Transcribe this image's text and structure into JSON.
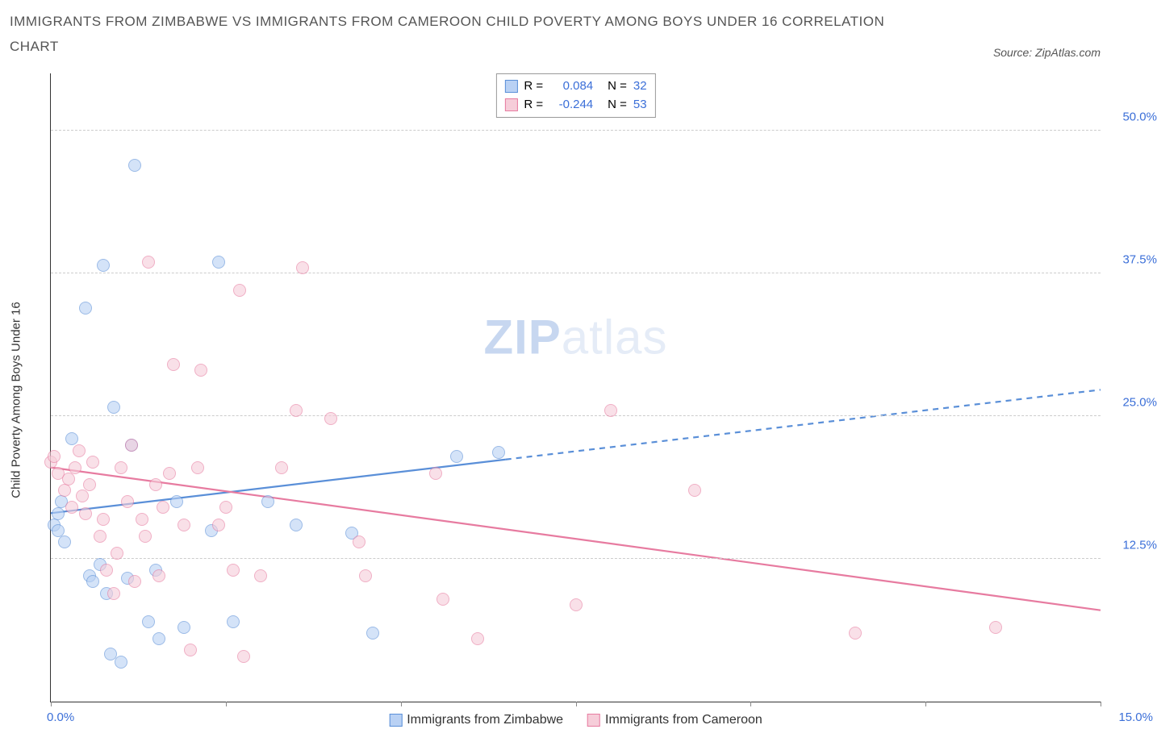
{
  "title": "IMMIGRANTS FROM ZIMBABWE VS IMMIGRANTS FROM CAMEROON CHILD POVERTY AMONG BOYS UNDER 16 CORRELATION CHART",
  "source_label": "Source: ZipAtlas.com",
  "ylabel": "Child Poverty Among Boys Under 16",
  "watermark_bold": "ZIP",
  "watermark_light": "atlas",
  "chart": {
    "type": "scatter",
    "xlim": [
      0,
      15
    ],
    "ylim": [
      0,
      55
    ],
    "xtick_label_min": "0.0%",
    "xtick_label_max": "15.0%",
    "xticks": [
      0,
      2.5,
      5,
      7.5,
      10,
      12.5,
      15
    ],
    "yticks": [
      {
        "v": 12.5,
        "label": "12.5%"
      },
      {
        "v": 25.0,
        "label": "25.0%"
      },
      {
        "v": 37.5,
        "label": "37.5%"
      },
      {
        "v": 50.0,
        "label": "50.0%"
      }
    ],
    "background_color": "#ffffff",
    "grid_color": "#cccccc",
    "marker_radius": 8,
    "marker_opacity": 0.6
  },
  "series": [
    {
      "name": "Immigrants from Zimbabwe",
      "fill": "#b9d1f4",
      "stroke": "#5a8fd8",
      "R_label": "R =",
      "R": "0.084",
      "N_label": "N =",
      "N": "32",
      "trend": {
        "x1": 0,
        "y1": 16.5,
        "x2_solid": 6.5,
        "y2_solid": 21.2,
        "x2": 15,
        "y2": 27.3
      },
      "points": [
        [
          0.05,
          15.5
        ],
        [
          0.1,
          15.0
        ],
        [
          0.1,
          16.5
        ],
        [
          0.15,
          17.5
        ],
        [
          0.2,
          14.0
        ],
        [
          0.3,
          23.0
        ],
        [
          0.5,
          34.5
        ],
        [
          0.55,
          11.0
        ],
        [
          0.6,
          10.5
        ],
        [
          0.7,
          12.0
        ],
        [
          0.75,
          38.2
        ],
        [
          0.8,
          9.5
        ],
        [
          0.85,
          4.2
        ],
        [
          0.9,
          25.8
        ],
        [
          1.0,
          3.5
        ],
        [
          1.1,
          10.8
        ],
        [
          1.15,
          22.5
        ],
        [
          1.2,
          47.0
        ],
        [
          1.4,
          7.0
        ],
        [
          1.5,
          11.5
        ],
        [
          1.55,
          5.5
        ],
        [
          1.8,
          17.5
        ],
        [
          1.9,
          6.5
        ],
        [
          2.3,
          15.0
        ],
        [
          2.4,
          38.5
        ],
        [
          2.6,
          7.0
        ],
        [
          3.1,
          17.5
        ],
        [
          3.5,
          15.5
        ],
        [
          4.3,
          14.8
        ],
        [
          4.6,
          6.0
        ],
        [
          5.8,
          21.5
        ],
        [
          6.4,
          21.8
        ]
      ]
    },
    {
      "name": "Immigrants from Cameroon",
      "fill": "#f6cdd9",
      "stroke": "#e77ba0",
      "R_label": "R =",
      "R": "-0.244",
      "N_label": "N =",
      "N": "53",
      "trend": {
        "x1": 0,
        "y1": 20.5,
        "x2_solid": 15,
        "y2_solid": 8.0,
        "x2": 15,
        "y2": 8.0
      },
      "points": [
        [
          0.0,
          21.0
        ],
        [
          0.05,
          21.5
        ],
        [
          0.1,
          20.0
        ],
        [
          0.2,
          18.5
        ],
        [
          0.25,
          19.5
        ],
        [
          0.3,
          17.0
        ],
        [
          0.35,
          20.5
        ],
        [
          0.4,
          22.0
        ],
        [
          0.45,
          18.0
        ],
        [
          0.5,
          16.5
        ],
        [
          0.55,
          19.0
        ],
        [
          0.6,
          21.0
        ],
        [
          0.7,
          14.5
        ],
        [
          0.75,
          16.0
        ],
        [
          0.8,
          11.5
        ],
        [
          0.9,
          9.5
        ],
        [
          0.95,
          13.0
        ],
        [
          1.0,
          20.5
        ],
        [
          1.1,
          17.5
        ],
        [
          1.15,
          22.5
        ],
        [
          1.2,
          10.5
        ],
        [
          1.3,
          16.0
        ],
        [
          1.35,
          14.5
        ],
        [
          1.4,
          38.5
        ],
        [
          1.5,
          19.0
        ],
        [
          1.55,
          11.0
        ],
        [
          1.6,
          17.0
        ],
        [
          1.7,
          20.0
        ],
        [
          1.75,
          29.5
        ],
        [
          1.9,
          15.5
        ],
        [
          2.0,
          4.5
        ],
        [
          2.1,
          20.5
        ],
        [
          2.15,
          29.0
        ],
        [
          2.4,
          15.5
        ],
        [
          2.5,
          17.0
        ],
        [
          2.6,
          11.5
        ],
        [
          2.7,
          36.0
        ],
        [
          2.75,
          4.0
        ],
        [
          3.0,
          11.0
        ],
        [
          3.3,
          20.5
        ],
        [
          3.5,
          25.5
        ],
        [
          3.6,
          38.0
        ],
        [
          4.0,
          24.8
        ],
        [
          4.4,
          14.0
        ],
        [
          4.5,
          11.0
        ],
        [
          5.5,
          20.0
        ],
        [
          5.6,
          9.0
        ],
        [
          6.1,
          5.5
        ],
        [
          7.5,
          8.5
        ],
        [
          8.0,
          25.5
        ],
        [
          9.2,
          18.5
        ],
        [
          11.5,
          6.0
        ],
        [
          13.5,
          6.5
        ]
      ]
    }
  ]
}
